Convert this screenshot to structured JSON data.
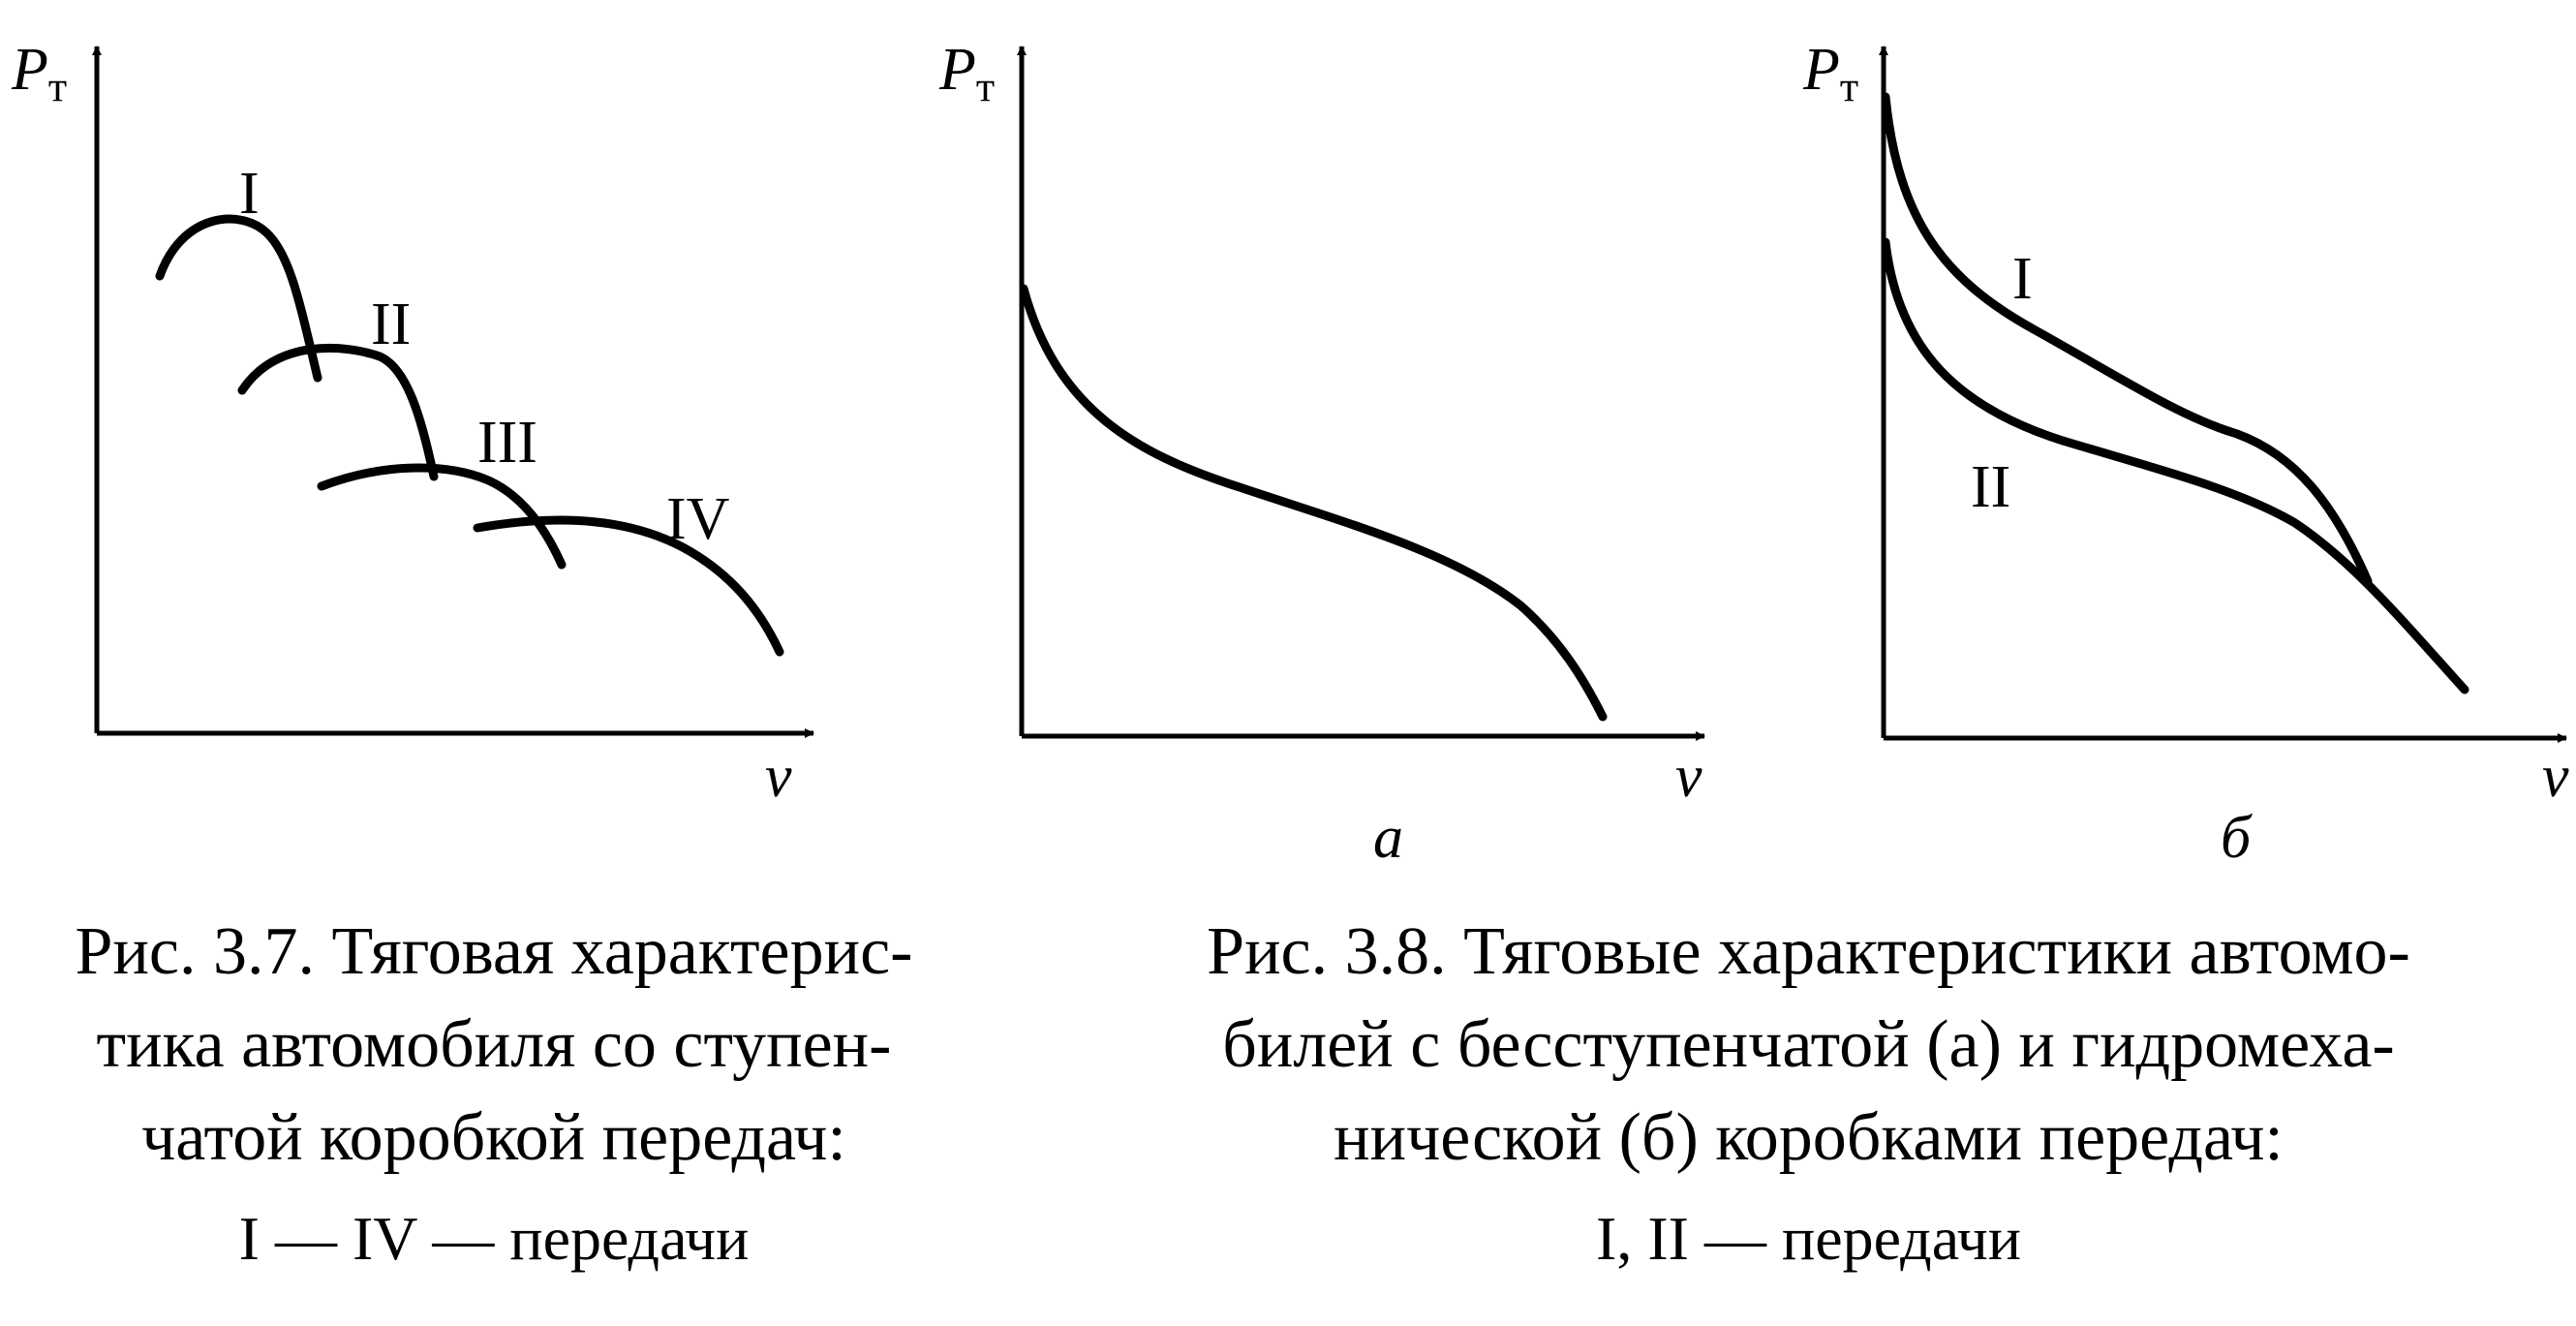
{
  "fig37": {
    "axis_y": "P",
    "axis_y_sub": "т",
    "axis_x": "v",
    "curve_labels": [
      "I",
      "II",
      "III",
      "IV"
    ],
    "caption_lines": [
      "Рис. 3.7. Тяговая характерис-",
      "тика автомобиля со ступен-",
      "чатой коробкой передач:"
    ],
    "legend": "I — IV — передачи"
  },
  "fig38a": {
    "axis_y": "P",
    "axis_y_sub": "т",
    "axis_x": "v",
    "panel_label": "а"
  },
  "fig38b": {
    "axis_y": "P",
    "axis_y_sub": "т",
    "axis_x": "v",
    "panel_label": "б",
    "curve_labels": [
      "I",
      "II"
    ]
  },
  "fig38": {
    "caption_lines": [
      "Рис. 3.8. Тяговые характеристики автомо-",
      "билей с бесступенчатой (а) и гидромеха-",
      "нической (б) коробками передач:"
    ],
    "legend": "I, II — передачи"
  }
}
